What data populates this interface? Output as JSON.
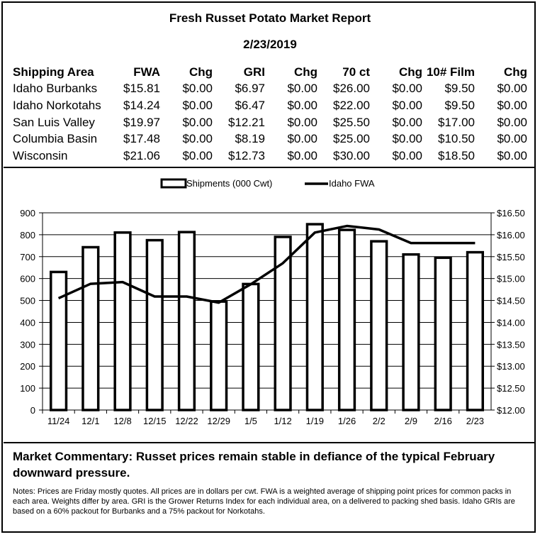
{
  "report": {
    "title": "Fresh Russet Potato Market Report",
    "date": "2/23/2019"
  },
  "table": {
    "headers": [
      "Shipping Area",
      "FWA",
      "Chg",
      "GRI",
      "Chg",
      "70 ct",
      "Chg",
      "10# Film",
      "Chg"
    ],
    "rows": [
      [
        "Idaho Burbanks",
        "$15.81",
        "$0.00",
        "$6.97",
        "$0.00",
        "$26.00",
        "$0.00",
        "$9.50",
        "$0.00"
      ],
      [
        "Idaho Norkotahs",
        "$14.24",
        "$0.00",
        "$6.47",
        "$0.00",
        "$22.00",
        "$0.00",
        "$9.50",
        "$0.00"
      ],
      [
        "San Luis Valley",
        "$19.97",
        "$0.00",
        "$12.21",
        "$0.00",
        "$25.50",
        "$0.00",
        "$17.00",
        "$0.00"
      ],
      [
        "Columbia Basin",
        "$17.48",
        "$0.00",
        "$8.19",
        "$0.00",
        "$25.00",
        "$0.00",
        "$10.50",
        "$0.00"
      ],
      [
        "Wisconsin",
        "$21.06",
        "$0.00",
        "$12.73",
        "$0.00",
        "$30.00",
        "$0.00",
        "$18.50",
        "$0.00"
      ]
    ]
  },
  "chart_data": {
    "type": "bar",
    "categories": [
      "11/24",
      "12/1",
      "12/8",
      "12/15",
      "12/22",
      "12/29",
      "1/5",
      "1/12",
      "1/19",
      "1/26",
      "2/2",
      "2/9",
      "2/16",
      "2/23"
    ],
    "series": [
      {
        "name": "Shipments (000 Cwt)",
        "type": "bar",
        "axis": "left",
        "values": [
          630,
          743,
          810,
          775,
          812,
          495,
          575,
          790,
          848,
          822,
          770,
          710,
          695,
          720
        ]
      },
      {
        "name": "Idaho FWA",
        "type": "line",
        "axis": "right",
        "values": [
          14.55,
          14.88,
          14.92,
          14.59,
          14.59,
          14.45,
          14.87,
          15.35,
          16.05,
          16.2,
          16.12,
          15.81,
          15.81,
          15.81
        ]
      }
    ],
    "ylim_left": [
      0,
      900
    ],
    "yticks_left": [
      "0",
      "100",
      "200",
      "300",
      "400",
      "500",
      "600",
      "700",
      "800",
      "900"
    ],
    "ylim_right": [
      12.0,
      16.5
    ],
    "yticks_right": [
      "$12.00",
      "$12.50",
      "$13.00",
      "$13.50",
      "$14.00",
      "$14.50",
      "$15.00",
      "$15.50",
      "$16.00",
      "$16.50"
    ],
    "grid": true,
    "legend_position": "top-center",
    "colors": {
      "bar_fill": "#ffffff",
      "bar_stroke": "#000000",
      "line": "#000000",
      "plot_bg": "#ffffff"
    }
  },
  "commentary": "Market Commentary: Russet prices remain stable in defiance of the typical February downward pressure.",
  "notes": "Notes: Prices are Friday mostly quotes. All prices are in dollars per cwt. FWA is a weighted average of shipping point prices for common packs in each area. Weights differ by area. GRI is the Grower Returns Index for each individual area, on a delivered to packing shed basis. Idaho GRIs are based on a 60% packout for Burbanks and a 75% packout for Norkotahs."
}
